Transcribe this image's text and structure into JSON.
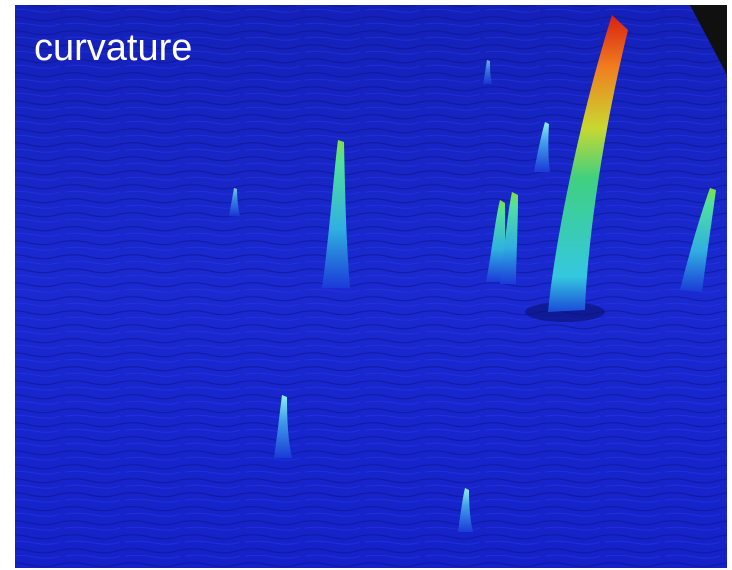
{
  "label": "curvature"
}
